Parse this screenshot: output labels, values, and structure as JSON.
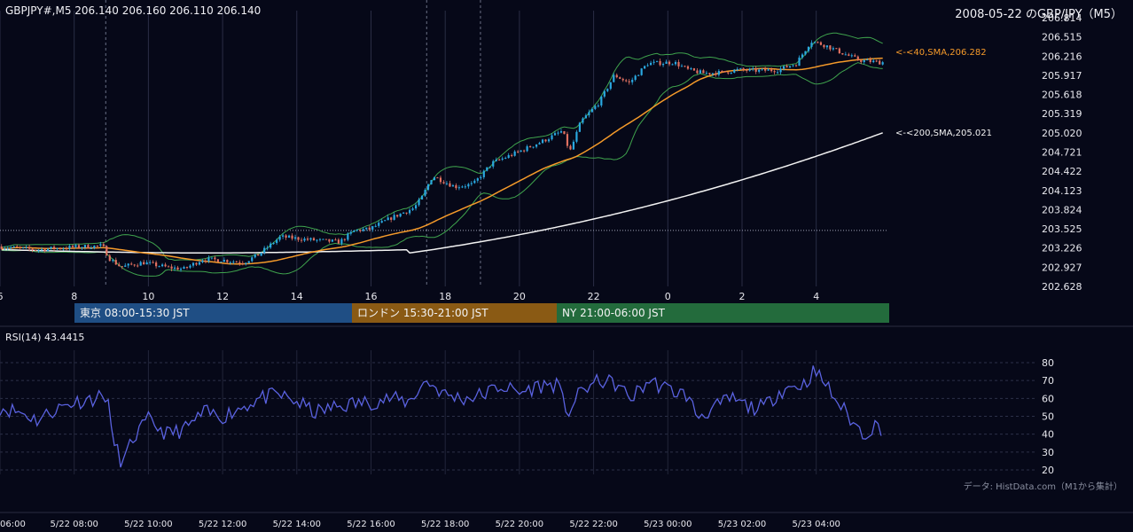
{
  "header": {
    "symbol_info": "GBPJPY#,M5 206.140 206.160 206.110 206.140",
    "title": "2008-05-22 のGBP/JPY（M5）"
  },
  "colors": {
    "background": "#060818",
    "up_candle": "#2aa8e0",
    "down_candle": "#e07060",
    "sma40": "#f59a2a",
    "sma200": "#f2f2f2",
    "bollinger": "#3fa34d",
    "rsi": "#5a62e0",
    "tokyo": "#1f4e84",
    "london": "#8a5a14",
    "ny": "#236b3c"
  },
  "sessions": [
    {
      "label": "東京 08:00-15:30 JST"
    },
    {
      "label": "ロンドン 15:30-21:00 JST"
    },
    {
      "label": "NY 21:00-06:00 JST"
    }
  ],
  "sma_labels": {
    "sma40": "<-<40,SMA,206.282",
    "sma200": "<-<200,SMA,205.021"
  },
  "rsi_panel": {
    "title": "RSI(14) 43.4415"
  },
  "credit": "データ: HistData.com（M1から集計）",
  "chart_data": [
    {
      "type": "candlestick",
      "title": "2008-05-22 のGBP/JPY（M5）",
      "x_tick_labels": [
        "6",
        "8",
        "10",
        "12",
        "14",
        "16",
        "18",
        "20",
        "22",
        "0",
        "2",
        "4"
      ],
      "x_ticks_hours": [
        6,
        8,
        10,
        12,
        14,
        16,
        18,
        20,
        22,
        24,
        26,
        28
      ],
      "x_range_hours": [
        6,
        29.75
      ],
      "y_ticks": [
        "202.628",
        "202.927",
        "203.226",
        "203.525",
        "203.824",
        "204.123",
        "204.422",
        "204.721",
        "205.020",
        "205.319",
        "205.618",
        "205.917",
        "206.216",
        "206.515",
        "206.814"
      ],
      "ylim": [
        202.628,
        206.814
      ],
      "price_anchors": [
        [
          6.0,
          203.25
        ],
        [
          7.0,
          203.2
        ],
        [
          8.0,
          203.24
        ],
        [
          8.8,
          203.26
        ],
        [
          9.0,
          203.06
        ],
        [
          9.3,
          202.93
        ],
        [
          9.9,
          203.0
        ],
        [
          10.6,
          202.92
        ],
        [
          11.0,
          202.9
        ],
        [
          11.5,
          203.05
        ],
        [
          12.0,
          203.04
        ],
        [
          12.6,
          203.0
        ],
        [
          13.0,
          203.12
        ],
        [
          13.6,
          203.4
        ],
        [
          14.5,
          203.35
        ],
        [
          15.2,
          203.32
        ],
        [
          15.6,
          203.5
        ],
        [
          16.0,
          203.52
        ],
        [
          16.6,
          203.7
        ],
        [
          17.2,
          203.85
        ],
        [
          17.4,
          204.0
        ],
        [
          17.7,
          204.35
        ],
        [
          18.3,
          204.18
        ],
        [
          18.8,
          204.22
        ],
        [
          19.3,
          204.55
        ],
        [
          20.0,
          204.72
        ],
        [
          20.7,
          204.9
        ],
        [
          21.2,
          205.05
        ],
        [
          21.4,
          204.72
        ],
        [
          21.7,
          205.2
        ],
        [
          22.2,
          205.5
        ],
        [
          22.6,
          205.92
        ],
        [
          23.0,
          205.8
        ],
        [
          23.5,
          206.1
        ],
        [
          24.2,
          206.12
        ],
        [
          24.6,
          206.0
        ],
        [
          25.0,
          205.95
        ],
        [
          25.5,
          205.96
        ],
        [
          25.9,
          206.0
        ],
        [
          26.5,
          205.99
        ],
        [
          27.0,
          206.0
        ],
        [
          27.5,
          206.1
        ],
        [
          27.9,
          206.45
        ],
        [
          28.3,
          206.38
        ],
        [
          28.8,
          206.25
        ],
        [
          29.2,
          206.15
        ],
        [
          29.75,
          206.12
        ]
      ],
      "sma200_end": 205.021,
      "sma40_end": 206.282,
      "horizontal_dotted_level": 203.5,
      "vertical_dashed_hours": [
        8.85,
        17.5,
        18.95
      ]
    },
    {
      "type": "line",
      "title": "RSI(14) 43.4415",
      "y_ticks": [
        20,
        30,
        40,
        50,
        60,
        70,
        80
      ],
      "ylim": [
        20,
        80
      ],
      "values_anchors": [
        [
          6.0,
          55
        ],
        [
          6.6,
          52
        ],
        [
          7.0,
          48
        ],
        [
          7.5,
          54
        ],
        [
          8.0,
          58
        ],
        [
          8.5,
          60
        ],
        [
          8.9,
          62
        ],
        [
          9.0,
          40
        ],
        [
          9.3,
          23
        ],
        [
          9.6,
          38
        ],
        [
          10.0,
          48
        ],
        [
          10.5,
          40
        ],
        [
          11.0,
          43
        ],
        [
          11.5,
          52
        ],
        [
          12.0,
          50
        ],
        [
          12.5,
          55
        ],
        [
          13.0,
          60
        ],
        [
          13.5,
          62
        ],
        [
          14.0,
          58
        ],
        [
          14.5,
          52
        ],
        [
          15.0,
          55
        ],
        [
          15.5,
          57
        ],
        [
          16.0,
          58
        ],
        [
          16.5,
          60
        ],
        [
          17.0,
          58
        ],
        [
          17.5,
          70
        ],
        [
          18.0,
          62
        ],
        [
          18.5,
          60
        ],
        [
          19.0,
          62
        ],
        [
          19.5,
          67
        ],
        [
          20.0,
          63
        ],
        [
          20.5,
          67
        ],
        [
          21.0,
          68
        ],
        [
          21.3,
          52
        ],
        [
          21.7,
          65
        ],
        [
          22.2,
          70
        ],
        [
          22.6,
          68
        ],
        [
          23.0,
          60
        ],
        [
          23.5,
          70
        ],
        [
          24.0,
          65
        ],
        [
          24.5,
          62
        ],
        [
          24.8,
          50
        ],
        [
          25.3,
          55
        ],
        [
          25.7,
          60
        ],
        [
          26.2,
          55
        ],
        [
          26.6,
          55
        ],
        [
          27.0,
          64
        ],
        [
          27.4,
          67
        ],
        [
          27.7,
          68
        ],
        [
          27.9,
          75
        ],
        [
          28.2,
          70
        ],
        [
          28.5,
          60
        ],
        [
          28.8,
          52
        ],
        [
          29.0,
          46
        ],
        [
          29.3,
          40
        ],
        [
          29.6,
          45
        ],
        [
          29.75,
          43.4415
        ]
      ]
    }
  ],
  "time_axis": {
    "labels": [
      "06:00",
      "5/22 08:00",
      "5/22 10:00",
      "5/22 12:00",
      "5/22 14:00",
      "5/22 16:00",
      "5/22 18:00",
      "5/22 20:00",
      "5/22 22:00",
      "5/23 00:00",
      "5/23 02:00",
      "5/23 04:00"
    ]
  }
}
